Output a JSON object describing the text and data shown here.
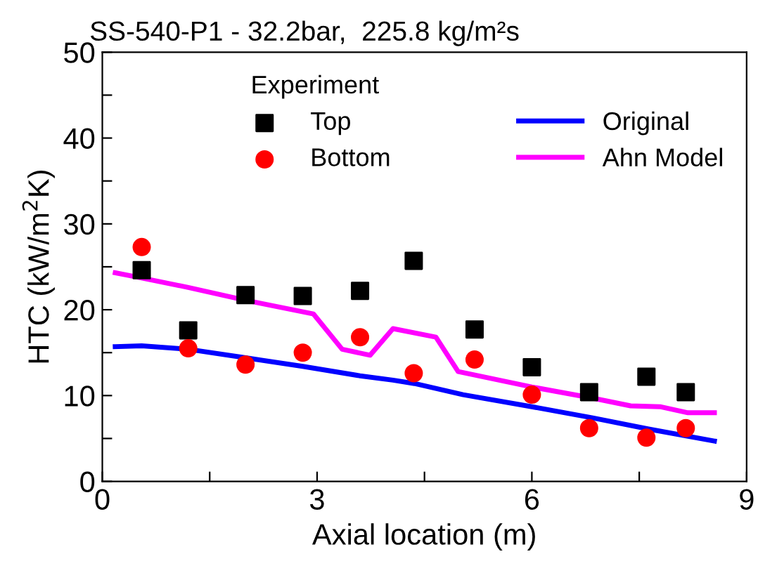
{
  "chart_data": {
    "type": "scatter",
    "title": "SS-540-P1 - 32.2bar,  225.8 kg/m²s",
    "xlabel": "Axial location (m)",
    "ylabel": "HTC (kW/m$^{2}$K)",
    "legend_title": "Experiment",
    "legend": "top",
    "grid": false,
    "xlim": [
      0,
      9
    ],
    "ylim": [
      0,
      50
    ],
    "xticks": [
      0,
      {
        "value": 1.5,
        "label": null
      },
      3,
      {
        "value": 4.5,
        "label": null
      },
      6,
      {
        "value": 7.5,
        "label": null
      },
      9
    ],
    "yticks": [
      0,
      {
        "value": 5,
        "label": null
      },
      10,
      {
        "value": 15,
        "label": null
      },
      20,
      {
        "value": 25,
        "label": null
      },
      30,
      {
        "value": 35,
        "label": null
      },
      40,
      {
        "value": 45,
        "label": null
      },
      50
    ],
    "series": [
      {
        "name": "Top",
        "marker": "square",
        "color": "#000000",
        "x": [
          0.55,
          1.2,
          2.0,
          2.8,
          3.6,
          4.35,
          5.2,
          6.0,
          6.8,
          7.6,
          8.15
        ],
        "values": [
          24.6,
          17.6,
          21.7,
          21.6,
          22.2,
          25.7,
          17.7,
          13.3,
          10.4,
          12.2,
          10.4
        ]
      },
      {
        "name": "Bottom",
        "marker": "circle",
        "color": "#ff0000",
        "x": [
          0.55,
          1.2,
          2.0,
          2.8,
          3.6,
          4.35,
          5.2,
          6.0,
          6.8,
          7.6,
          8.15
        ],
        "values": [
          27.3,
          15.5,
          13.6,
          15.0,
          16.8,
          12.6,
          14.2,
          10.1,
          6.2,
          5.1,
          6.2
        ]
      },
      {
        "name": "Original",
        "type": "line",
        "line_style": "solid",
        "color": "#0000ff",
        "x": [
          0.18,
          0.55,
          1.2,
          2.0,
          2.8,
          3.6,
          4.06,
          4.36,
          5.04,
          6.0,
          6.85,
          7.63,
          8.55
        ],
        "values": [
          15.7,
          15.8,
          15.4,
          14.4,
          13.4,
          12.3,
          11.8,
          11.4,
          10.1,
          8.7,
          7.4,
          6.1,
          4.7
        ]
      },
      {
        "name": "Ahn Model",
        "type": "line",
        "line_style": "solid",
        "color": "#ff00ff",
        "x": [
          0.18,
          0.55,
          1.2,
          2.0,
          2.95,
          3.35,
          3.74,
          4.06,
          4.66,
          4.97,
          6.0,
          6.85,
          7.38,
          7.79,
          8.18,
          8.55
        ],
        "values": [
          24.3,
          23.7,
          22.6,
          21.1,
          19.5,
          15.4,
          14.7,
          17.8,
          16.8,
          12.8,
          11.0,
          9.7,
          8.8,
          8.7,
          8.0,
          8.0
        ]
      }
    ]
  }
}
